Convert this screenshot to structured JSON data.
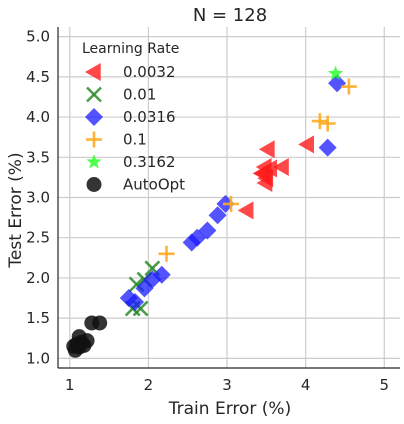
{
  "chart_data": {
    "type": "scatter",
    "title": "N = 128",
    "xlabel": "Train Error (%)",
    "ylabel": "Test Error (%)",
    "xlim": [
      0.85,
      5.2
    ],
    "ylim": [
      0.88,
      5.12
    ],
    "xticks": [
      "1",
      "2",
      "3",
      "4",
      "5"
    ],
    "yticks": [
      "1.0",
      "1.5",
      "2.0",
      "2.5",
      "3.0",
      "3.5",
      "4.0",
      "4.5",
      "5.0"
    ],
    "grid": true,
    "legend": {
      "title": "Learning Rate",
      "placement": "top-left"
    },
    "series": [
      {
        "name": "0.0032",
        "marker": "triangle-left",
        "color": "#ff1a1a",
        "points": [
          [
            3.52,
            3.6
          ],
          [
            3.48,
            3.38
          ],
          [
            3.46,
            3.3
          ],
          [
            3.5,
            3.24
          ],
          [
            3.49,
            3.18
          ],
          [
            3.44,
            3.3
          ],
          [
            3.7,
            3.38
          ],
          [
            3.55,
            3.36
          ],
          [
            4.02,
            3.66
          ],
          [
            3.25,
            2.84
          ]
        ]
      },
      {
        "name": "0.01",
        "marker": "x",
        "color": "#2a8a2a",
        "points": [
          [
            1.8,
            1.62
          ],
          [
            1.9,
            1.62
          ],
          [
            1.85,
            1.92
          ],
          [
            1.95,
            1.98
          ],
          [
            2.05,
            2.12
          ]
        ]
      },
      {
        "name": "0.0316",
        "marker": "diamond",
        "color": "#1a1aff",
        "points": [
          [
            1.75,
            1.75
          ],
          [
            1.83,
            1.7
          ],
          [
            1.95,
            1.87
          ],
          [
            2.05,
            1.98
          ],
          [
            2.17,
            2.04
          ],
          [
            2.55,
            2.44
          ],
          [
            2.62,
            2.5
          ],
          [
            2.75,
            2.59
          ],
          [
            2.88,
            2.78
          ],
          [
            2.98,
            2.92
          ],
          [
            4.28,
            3.62
          ],
          [
            4.4,
            4.42
          ]
        ]
      },
      {
        "name": "0.1",
        "marker": "plus",
        "color": "#ffaa22",
        "points": [
          [
            2.23,
            2.3
          ],
          [
            3.05,
            2.92
          ],
          [
            4.18,
            3.95
          ],
          [
            4.28,
            3.92
          ],
          [
            4.55,
            4.38
          ]
        ]
      },
      {
        "name": "0.3162",
        "marker": "star",
        "color": "#22ff22",
        "points": [
          [
            4.38,
            4.54
          ]
        ]
      },
      {
        "name": "AutoOpt",
        "marker": "circle",
        "color": "#111111",
        "points": [
          [
            1.05,
            1.15
          ],
          [
            1.07,
            1.1
          ],
          [
            1.09,
            1.18
          ],
          [
            1.12,
            1.14
          ],
          [
            1.15,
            1.2
          ],
          [
            1.18,
            1.16
          ],
          [
            1.12,
            1.27
          ],
          [
            1.22,
            1.22
          ],
          [
            1.28,
            1.44
          ],
          [
            1.38,
            1.44
          ]
        ]
      }
    ]
  }
}
